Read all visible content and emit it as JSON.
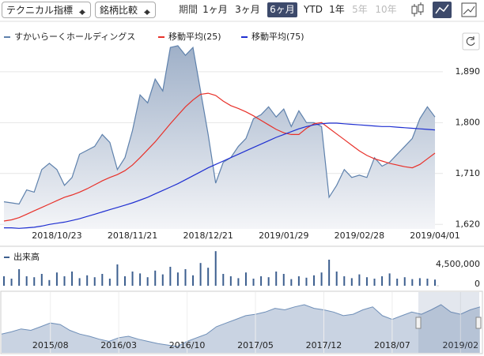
{
  "toolbar": {
    "technical": "テクニカル指標",
    "compare": "銘柄比較",
    "period_label": "期間",
    "periods": [
      "1ヶ月",
      "3ヶ月",
      "6ヶ月",
      "YTD",
      "1年",
      "5年",
      "10年"
    ],
    "active_period": 2,
    "disabled_periods": [
      5,
      6
    ]
  },
  "chart_data": [
    {
      "type": "line",
      "grid": true,
      "y_axis_side": "right",
      "categories": [
        null,
        null,
        null,
        null,
        null,
        null,
        null,
        "2018/10/23",
        null,
        null,
        null,
        null,
        null,
        null,
        null,
        null,
        null,
        "2018/11/21",
        null,
        null,
        null,
        null,
        null,
        null,
        null,
        null,
        null,
        "2018/12/21",
        null,
        null,
        null,
        null,
        null,
        null,
        null,
        null,
        null,
        "2019/01/29",
        null,
        null,
        null,
        null,
        null,
        null,
        null,
        null,
        null,
        "2019/02/28",
        null,
        null,
        null,
        null,
        null,
        null,
        null,
        null,
        null,
        "2019/04/01"
      ],
      "series": [
        {
          "name": "すかいらーくホールディングス",
          "color": "#5e81ac",
          "area": true,
          "values": [
            1660,
            1658,
            1656,
            1681,
            1677,
            1717,
            1728,
            1717,
            1689,
            1703,
            1744,
            1751,
            1758,
            1779,
            1765,
            1717,
            1738,
            1786,
            1849,
            1835,
            1877,
            1856,
            1933,
            1936,
            1919,
            1933,
            1856,
            1779,
            1693,
            1730,
            1738,
            1758,
            1772,
            1807,
            1814,
            1828,
            1810,
            1824,
            1793,
            1821,
            1800,
            1800,
            1793,
            1668,
            1689,
            1717,
            1703,
            1707,
            1703,
            1738,
            1723,
            1730,
            1744,
            1758,
            1772,
            1807,
            1828,
            1810
          ]
        },
        {
          "name": "移動平均(25)",
          "color": "#e8312a",
          "area": false,
          "values": [
            1626,
            1628,
            1632,
            1638,
            1644,
            1650,
            1656,
            1662,
            1668,
            1672,
            1677,
            1683,
            1690,
            1697,
            1703,
            1708,
            1715,
            1725,
            1738,
            1752,
            1766,
            1782,
            1798,
            1813,
            1828,
            1840,
            1850,
            1852,
            1848,
            1838,
            1830,
            1825,
            1819,
            1812,
            1804,
            1796,
            1788,
            1782,
            1779,
            1779,
            1790,
            1798,
            1800,
            1790,
            1780,
            1770,
            1760,
            1750,
            1742,
            1736,
            1732,
            1728,
            1725,
            1722,
            1720,
            1726,
            1736,
            1746
          ]
        },
        {
          "name": "移動平均(75)",
          "color": "#1f2fd1",
          "area": false,
          "values": [
            1614,
            1614,
            1613,
            1614,
            1615,
            1617,
            1620,
            1622,
            1624,
            1627,
            1630,
            1634,
            1638,
            1642,
            1646,
            1650,
            1654,
            1658,
            1663,
            1668,
            1674,
            1680,
            1686,
            1692,
            1699,
            1706,
            1713,
            1720,
            1726,
            1732,
            1738,
            1744,
            1750,
            1756,
            1762,
            1768,
            1774,
            1779,
            1784,
            1789,
            1793,
            1796,
            1798,
            1799,
            1799,
            1798,
            1797,
            1796,
            1795,
            1794,
            1793,
            1793,
            1792,
            1791,
            1790,
            1789,
            1788,
            1787
          ]
        }
      ],
      "ylim": [
        1612,
        1961
      ],
      "yticks": [
        {
          "value": 1620,
          "label": "1,620"
        },
        {
          "value": 1710,
          "label": "1,710"
        },
        {
          "value": 1800,
          "label": "1,800"
        },
        {
          "value": 1890,
          "label": "1,890"
        }
      ]
    },
    {
      "type": "bar",
      "title": "出来高",
      "color": "#3d5f8f",
      "values": [
        2000000,
        1500000,
        3500000,
        2000000,
        1800000,
        2500000,
        1200000,
        2800000,
        2000000,
        3000000,
        1600000,
        2200000,
        1800000,
        2500000,
        1500000,
        4500000,
        2000000,
        3000000,
        2600000,
        1800000,
        3200000,
        2400000,
        4000000,
        2800000,
        3500000,
        2200000,
        4800000,
        3800000,
        7300000,
        2500000,
        2000000,
        1600000,
        2800000,
        1500000,
        2000000,
        1800000,
        3000000,
        2500000,
        1400000,
        2000000,
        1700000,
        2200000,
        2800000,
        5500000,
        3000000,
        2000000,
        1600000,
        2400000,
        1800000,
        1500000,
        2000000,
        2600000,
        1500000,
        1800000,
        1400000,
        1600000,
        1500000,
        1300000
      ],
      "ylim": [
        0,
        7330000
      ],
      "yticks": [
        0,
        {
          "value": 4500000,
          "label": "4,500,000"
        }
      ]
    },
    {
      "type": "area",
      "color": "#6f8fb8",
      "categories": [
        null,
        null,
        null,
        null,
        null,
        "2015/08",
        null,
        null,
        null,
        null,
        null,
        null,
        "2016/03",
        null,
        null,
        null,
        null,
        null,
        null,
        "2016/10",
        null,
        null,
        null,
        null,
        null,
        null,
        "2017/05",
        null,
        null,
        null,
        null,
        null,
        null,
        "2017/12",
        null,
        null,
        null,
        null,
        null,
        null,
        "2018/07",
        null,
        null,
        null,
        null,
        null,
        null,
        "2019/02",
        null,
        null
      ],
      "values": [
        1450,
        1480,
        1520,
        1500,
        1550,
        1600,
        1580,
        1500,
        1450,
        1420,
        1380,
        1350,
        1400,
        1420,
        1380,
        1350,
        1320,
        1300,
        1280,
        1350,
        1400,
        1450,
        1550,
        1600,
        1650,
        1700,
        1720,
        1750,
        1800,
        1780,
        1820,
        1850,
        1800,
        1780,
        1750,
        1700,
        1720,
        1780,
        1820,
        1700,
        1650,
        1700,
        1750,
        1720,
        1780,
        1850,
        1750,
        1720,
        1780,
        1820
      ]
    }
  ]
}
